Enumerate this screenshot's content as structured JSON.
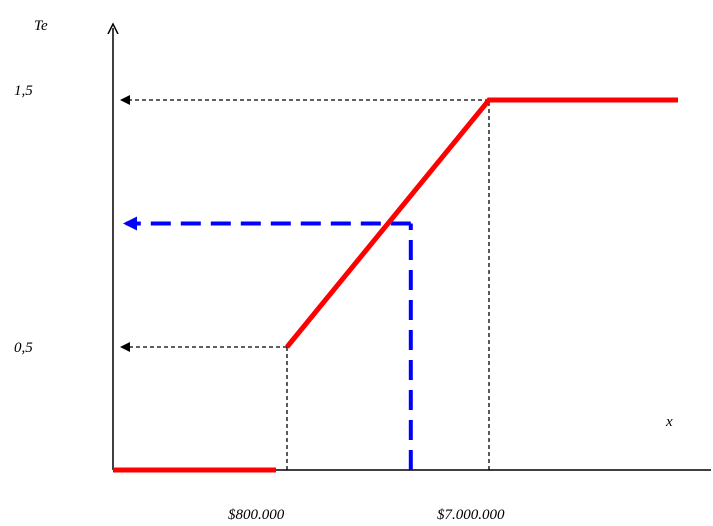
{
  "chart_data": {
    "type": "line",
    "title": "",
    "xlabel": "x",
    "ylabel": "Te",
    "grid": false,
    "x_tick_labels": [
      "$800.000",
      "$7.000.000"
    ],
    "y_tick_labels": [
      "0,5",
      "1,5"
    ],
    "xlim": [
      0,
      10000000
    ],
    "ylim": [
      0,
      2
    ],
    "series": [
      {
        "style": "solid",
        "color": "#ff0000",
        "points": [
          {
            "x": 0,
            "y": 0
          },
          {
            "x": 800000,
            "y": 0
          },
          {
            "x": 800000,
            "y": 0.5
          },
          {
            "x": 7000000,
            "y": 1.5
          },
          {
            "x": 10000000,
            "y": 1.5
          }
        ]
      }
    ],
    "annotations": [
      {
        "style": "dashed",
        "color": "#000000",
        "from": {
          "x": 800000,
          "y": 0
        },
        "to": {
          "x": 800000,
          "y": 0.5
        }
      },
      {
        "style": "dashed-arrow",
        "color": "#000000",
        "from": {
          "x": 800000,
          "y": 0.5
        },
        "to": {
          "x": 0,
          "y": 0.5
        }
      },
      {
        "style": "dashed",
        "color": "#000000",
        "from": {
          "x": 7000000,
          "y": 0
        },
        "to": {
          "x": 7000000,
          "y": 1.5
        }
      },
      {
        "style": "dashed-arrow",
        "color": "#000000",
        "from": {
          "x": 7000000,
          "y": 1.5
        },
        "to": {
          "x": 0,
          "y": 1.5
        }
      },
      {
        "style": "dashed",
        "color": "#0000ff",
        "from": {
          "x": 4600000,
          "y": 0
        },
        "to": {
          "x": 4600000,
          "y": 1.0
        }
      },
      {
        "style": "dashed-arrow",
        "color": "#0000ff",
        "from": {
          "x": 4600000,
          "y": 1.0
        },
        "to": {
          "x": 0,
          "y": 1.0
        }
      }
    ]
  }
}
